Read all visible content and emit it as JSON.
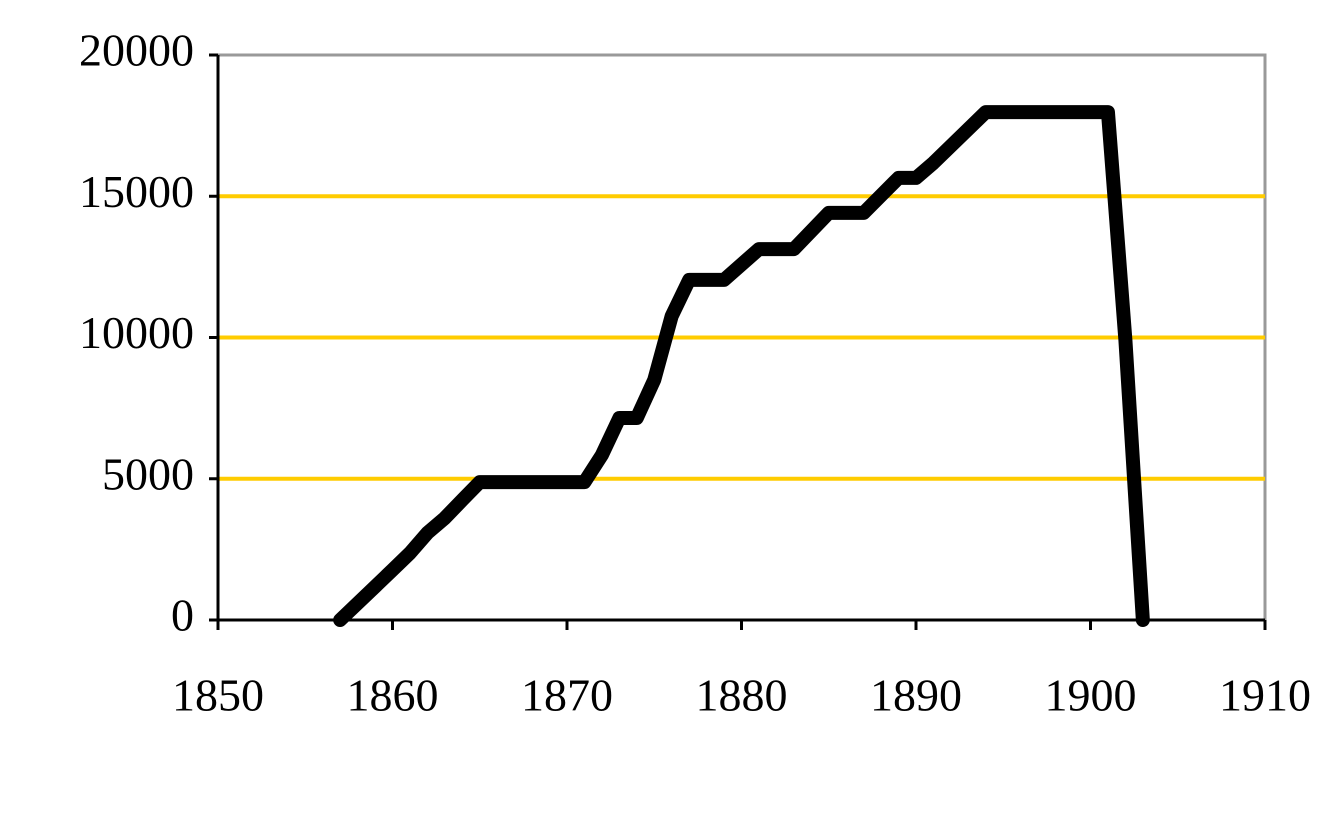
{
  "chart_data": {
    "type": "line",
    "x": [
      1857,
      1860,
      1861,
      1862,
      1863,
      1864,
      1865,
      1871,
      1872,
      1873,
      1874,
      1875,
      1876,
      1877,
      1879,
      1881,
      1883,
      1885,
      1887,
      1889,
      1890,
      1891,
      1894,
      1901,
      1902,
      1903
    ],
    "series": [
      {
        "color": "#000000",
        "values": [
          0,
          1770,
          2370,
          3080,
          3610,
          4250,
          4880,
          4880,
          5840,
          7150,
          7150,
          8500,
          10760,
          12040,
          12040,
          13130,
          13130,
          14410,
          14410,
          15650,
          15650,
          16180,
          17980,
          17980,
          9910,
          0
        ]
      }
    ],
    "xlim": [
      1850,
      1910
    ],
    "xticks": [
      1850,
      1860,
      1870,
      1880,
      1890,
      1900,
      1910
    ],
    "ylim": [
      0,
      20000
    ],
    "yticks": [
      0,
      5000,
      10000,
      15000,
      20000
    ],
    "grid": true,
    "grid_color": "#FFCC00"
  }
}
